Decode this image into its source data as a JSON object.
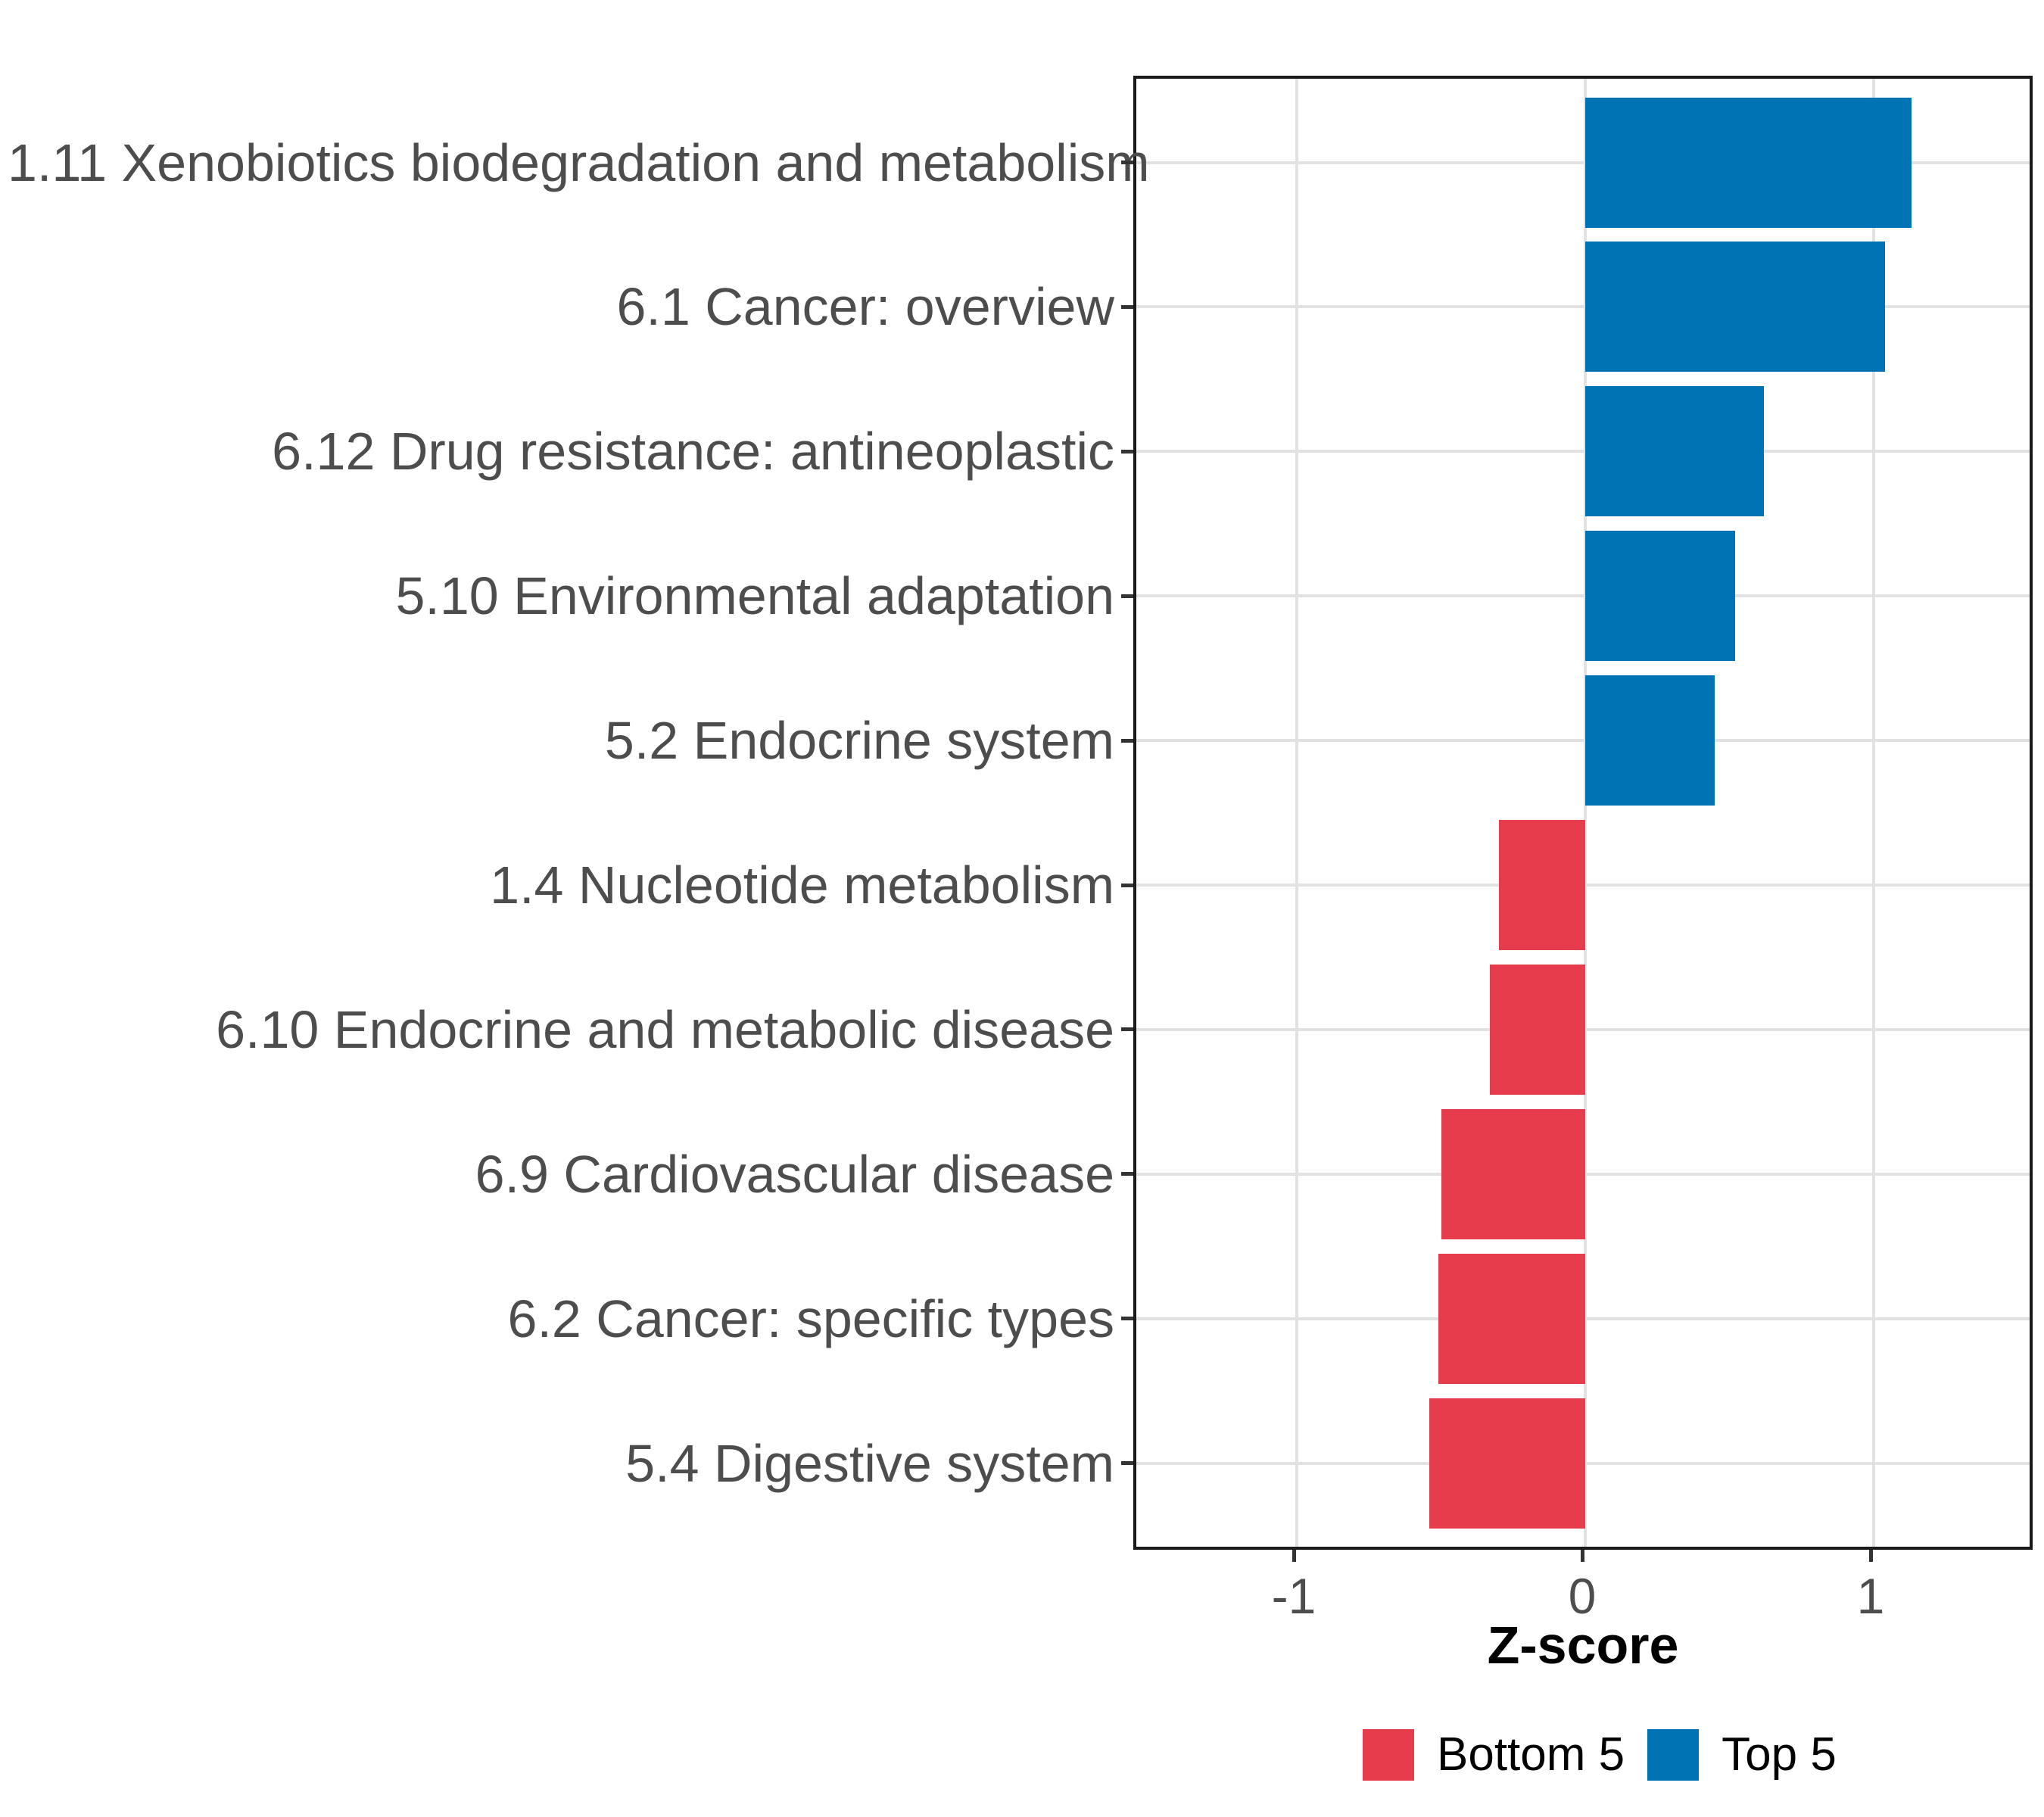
{
  "chart_data": {
    "type": "bar",
    "orientation": "horizontal",
    "xlabel": "Z-score",
    "x_ticks": [
      "-1",
      "0",
      "1"
    ],
    "x_tick_values": [
      -1,
      0,
      1
    ],
    "xlim": [
      -1.56,
      1.57
    ],
    "grid": "major-only",
    "legend_position": "bottom",
    "categories": [
      "1.11 Xenobiotics biodegradation and metabolism",
      "6.1 Cancer: overview",
      "6.12 Drug resistance: antineoplastic",
      "5.10 Environmental adaptation",
      "5.2 Endocrine system",
      "1.4 Nucleotide metabolism",
      "6.10 Endocrine and metabolic disease",
      "6.9 Cardiovascular disease",
      "6.2 Cancer: specific types",
      "5.4 Digestive system"
    ],
    "series": [
      {
        "name": "Z-score",
        "values": [
          1.13,
          1.04,
          0.62,
          0.52,
          0.45,
          -0.3,
          -0.33,
          -0.5,
          -0.51,
          -0.54
        ],
        "groups": [
          "Top 5",
          "Top 5",
          "Top 5",
          "Top 5",
          "Top 5",
          "Bottom 5",
          "Bottom 5",
          "Bottom 5",
          "Bottom 5",
          "Bottom 5"
        ]
      }
    ],
    "legend": [
      {
        "label": "Bottom 5",
        "color": "#E63C4B"
      },
      {
        "label": "Top 5",
        "color": "#0073B5"
      }
    ]
  }
}
